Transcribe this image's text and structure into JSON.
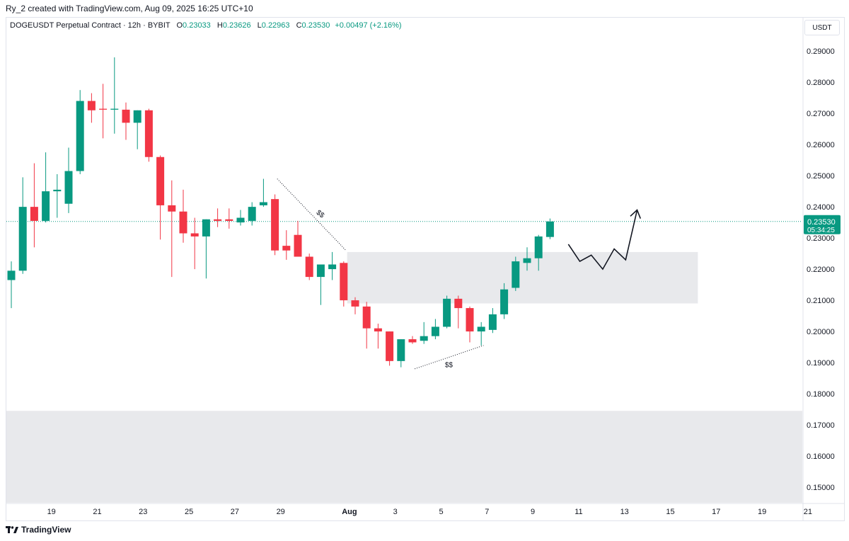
{
  "header": {
    "credit": "Ry_2 created with TradingView.com, Aug 09, 2025 16:25 UTC+10"
  },
  "legend": {
    "symbol": "DOGEUSDT Perpetual Contract · 12h · BYBIT",
    "o_label": "O",
    "o_value": "0.23033",
    "h_label": "H",
    "h_value": "0.23626",
    "l_label": "L",
    "l_value": "0.22963",
    "c_label": "C",
    "c_value": "0.23530",
    "change": "+0.00497 (+2.16%)"
  },
  "currency_button": "USDT",
  "last_price": {
    "price": "0.23530",
    "countdown": "05:34:25"
  },
  "footer": {
    "brand": "TradingView"
  },
  "colors": {
    "up": "#089981",
    "down": "#f23645",
    "zone": "#e8e9ec",
    "price_line": "#089981",
    "text": "#131722"
  },
  "annotations": {
    "ss_upper": "$$",
    "ss_lower": "$$"
  },
  "chart_data": {
    "type": "candlestick",
    "timeframe": "12h",
    "y_axis": {
      "ticks": [
        "0.29000",
        "0.28000",
        "0.27000",
        "0.26000",
        "0.25000",
        "0.24000",
        "0.23000",
        "0.22000",
        "0.21000",
        "0.20000",
        "0.19000",
        "0.18000",
        "0.17000",
        "0.16000",
        "0.15000"
      ],
      "min": 0.145,
      "max": 0.2955
    },
    "x_axis": {
      "ticks": [
        {
          "label": "19",
          "bar": 3.5
        },
        {
          "label": "21",
          "bar": 7.5
        },
        {
          "label": "23",
          "bar": 11.5
        },
        {
          "label": "25",
          "bar": 15.5
        },
        {
          "label": "27",
          "bar": 19.5
        },
        {
          "label": "29",
          "bar": 23.5
        },
        {
          "label": "Aug",
          "bar": 29.5,
          "bold": true
        },
        {
          "label": "3",
          "bar": 33.5
        },
        {
          "label": "5",
          "bar": 37.5
        },
        {
          "label": "7",
          "bar": 41.5
        },
        {
          "label": "9",
          "bar": 45.5
        },
        {
          "label": "11",
          "bar": 49.5
        },
        {
          "label": "13",
          "bar": 53.5
        },
        {
          "label": "15",
          "bar": 57.5
        },
        {
          "label": "17",
          "bar": 61.5
        },
        {
          "label": "19",
          "bar": 65.5
        },
        {
          "label": "21",
          "bar": 69.5
        }
      ]
    },
    "candles": [
      {
        "o": 0.2165,
        "h": 0.2225,
        "l": 0.2075,
        "c": 0.2195
      },
      {
        "o": 0.2195,
        "h": 0.2495,
        "l": 0.2185,
        "c": 0.24
      },
      {
        "o": 0.24,
        "h": 0.254,
        "l": 0.227,
        "c": 0.2355
      },
      {
        "o": 0.2355,
        "h": 0.2575,
        "l": 0.235,
        "c": 0.245
      },
      {
        "o": 0.245,
        "h": 0.2505,
        "l": 0.2365,
        "c": 0.2455
      },
      {
        "o": 0.241,
        "h": 0.259,
        "l": 0.238,
        "c": 0.2515
      },
      {
        "o": 0.2515,
        "h": 0.2775,
        "l": 0.2505,
        "c": 0.274
      },
      {
        "o": 0.274,
        "h": 0.2765,
        "l": 0.267,
        "c": 0.271
      },
      {
        "o": 0.2715,
        "h": 0.2795,
        "l": 0.262,
        "c": 0.2712
      },
      {
        "o": 0.2712,
        "h": 0.288,
        "l": 0.2635,
        "c": 0.2715
      },
      {
        "o": 0.2712,
        "h": 0.2735,
        "l": 0.2615,
        "c": 0.267
      },
      {
        "o": 0.267,
        "h": 0.271,
        "l": 0.2585,
        "c": 0.271
      },
      {
        "o": 0.271,
        "h": 0.2715,
        "l": 0.2545,
        "c": 0.256
      },
      {
        "o": 0.256,
        "h": 0.2565,
        "l": 0.2295,
        "c": 0.2405
      },
      {
        "o": 0.2405,
        "h": 0.2485,
        "l": 0.2175,
        "c": 0.2385
      },
      {
        "o": 0.2385,
        "h": 0.2455,
        "l": 0.2285,
        "c": 0.2315
      },
      {
        "o": 0.2315,
        "h": 0.2365,
        "l": 0.22,
        "c": 0.2305
      },
      {
        "o": 0.2305,
        "h": 0.236,
        "l": 0.217,
        "c": 0.236
      },
      {
        "o": 0.236,
        "h": 0.2395,
        "l": 0.2335,
        "c": 0.2355
      },
      {
        "o": 0.236,
        "h": 0.2395,
        "l": 0.233,
        "c": 0.2355
      },
      {
        "o": 0.235,
        "h": 0.239,
        "l": 0.234,
        "c": 0.2365
      },
      {
        "o": 0.2355,
        "h": 0.2415,
        "l": 0.234,
        "c": 0.24
      },
      {
        "o": 0.2405,
        "h": 0.249,
        "l": 0.24,
        "c": 0.2415
      },
      {
        "o": 0.2425,
        "h": 0.244,
        "l": 0.2245,
        "c": 0.226
      },
      {
        "o": 0.2275,
        "h": 0.2325,
        "l": 0.223,
        "c": 0.226
      },
      {
        "o": 0.231,
        "h": 0.2355,
        "l": 0.224,
        "c": 0.224
      },
      {
        "o": 0.224,
        "h": 0.225,
        "l": 0.2165,
        "c": 0.2175
      },
      {
        "o": 0.2175,
        "h": 0.221,
        "l": 0.2085,
        "c": 0.2215
      },
      {
        "o": 0.22,
        "h": 0.2255,
        "l": 0.2165,
        "c": 0.2215
      },
      {
        "o": 0.222,
        "h": 0.2225,
        "l": 0.208,
        "c": 0.21
      },
      {
        "o": 0.21,
        "h": 0.211,
        "l": 0.2055,
        "c": 0.208
      },
      {
        "o": 0.208,
        "h": 0.2095,
        "l": 0.1945,
        "c": 0.201
      },
      {
        "o": 0.201,
        "h": 0.2025,
        "l": 0.1945,
        "c": 0.2
      },
      {
        "o": 0.2,
        "h": 0.2,
        "l": 0.189,
        "c": 0.1905
      },
      {
        "o": 0.1905,
        "h": 0.1975,
        "l": 0.1885,
        "c": 0.1975
      },
      {
        "o": 0.1975,
        "h": 0.1985,
        "l": 0.196,
        "c": 0.1965
      },
      {
        "o": 0.197,
        "h": 0.203,
        "l": 0.196,
        "c": 0.1985
      },
      {
        "o": 0.1985,
        "h": 0.204,
        "l": 0.1975,
        "c": 0.2015
      },
      {
        "o": 0.2015,
        "h": 0.2115,
        "l": 0.201,
        "c": 0.2105
      },
      {
        "o": 0.2105,
        "h": 0.2115,
        "l": 0.201,
        "c": 0.2075
      },
      {
        "o": 0.2075,
        "h": 0.208,
        "l": 0.1965,
        "c": 0.2
      },
      {
        "o": 0.2,
        "h": 0.203,
        "l": 0.1955,
        "c": 0.2015
      },
      {
        "o": 0.2005,
        "h": 0.2075,
        "l": 0.1995,
        "c": 0.2055
      },
      {
        "o": 0.2055,
        "h": 0.2155,
        "l": 0.204,
        "c": 0.2135
      },
      {
        "o": 0.214,
        "h": 0.224,
        "l": 0.213,
        "c": 0.2225
      },
      {
        "o": 0.222,
        "h": 0.227,
        "l": 0.2195,
        "c": 0.2235
      },
      {
        "o": 0.2235,
        "h": 0.231,
        "l": 0.2195,
        "c": 0.2305
      },
      {
        "o": 0.23033,
        "h": 0.23626,
        "l": 0.22963,
        "c": 0.2353
      }
    ],
    "zones": [
      {
        "name": "supply-demand-zone",
        "from_bar": 29.3,
        "to_bar": 59.9,
        "top": 0.2255,
        "bottom": 0.209
      },
      {
        "name": "lower-zone",
        "from_bar": 0,
        "to_bar": 70,
        "top": 0.1745,
        "bottom": 0.145
      }
    ],
    "dotted_lines": [
      {
        "name": "upper-liquidity-line",
        "from": [
          23.2,
          0.249
        ],
        "to": [
          29.2,
          0.226
        ]
      },
      {
        "name": "lower-liquidity-line",
        "from": [
          35.2,
          0.188
        ],
        "to": [
          41.2,
          0.1955
        ]
      }
    ],
    "projection_path": [
      [
        48.6,
        0.228
      ],
      [
        49.6,
        0.2225
      ],
      [
        50.6,
        0.2245
      ],
      [
        51.6,
        0.22
      ],
      [
        52.6,
        0.2265
      ],
      [
        53.6,
        0.223
      ],
      [
        54.6,
        0.239
      ]
    ],
    "grid": false,
    "last_price": 0.2353
  }
}
